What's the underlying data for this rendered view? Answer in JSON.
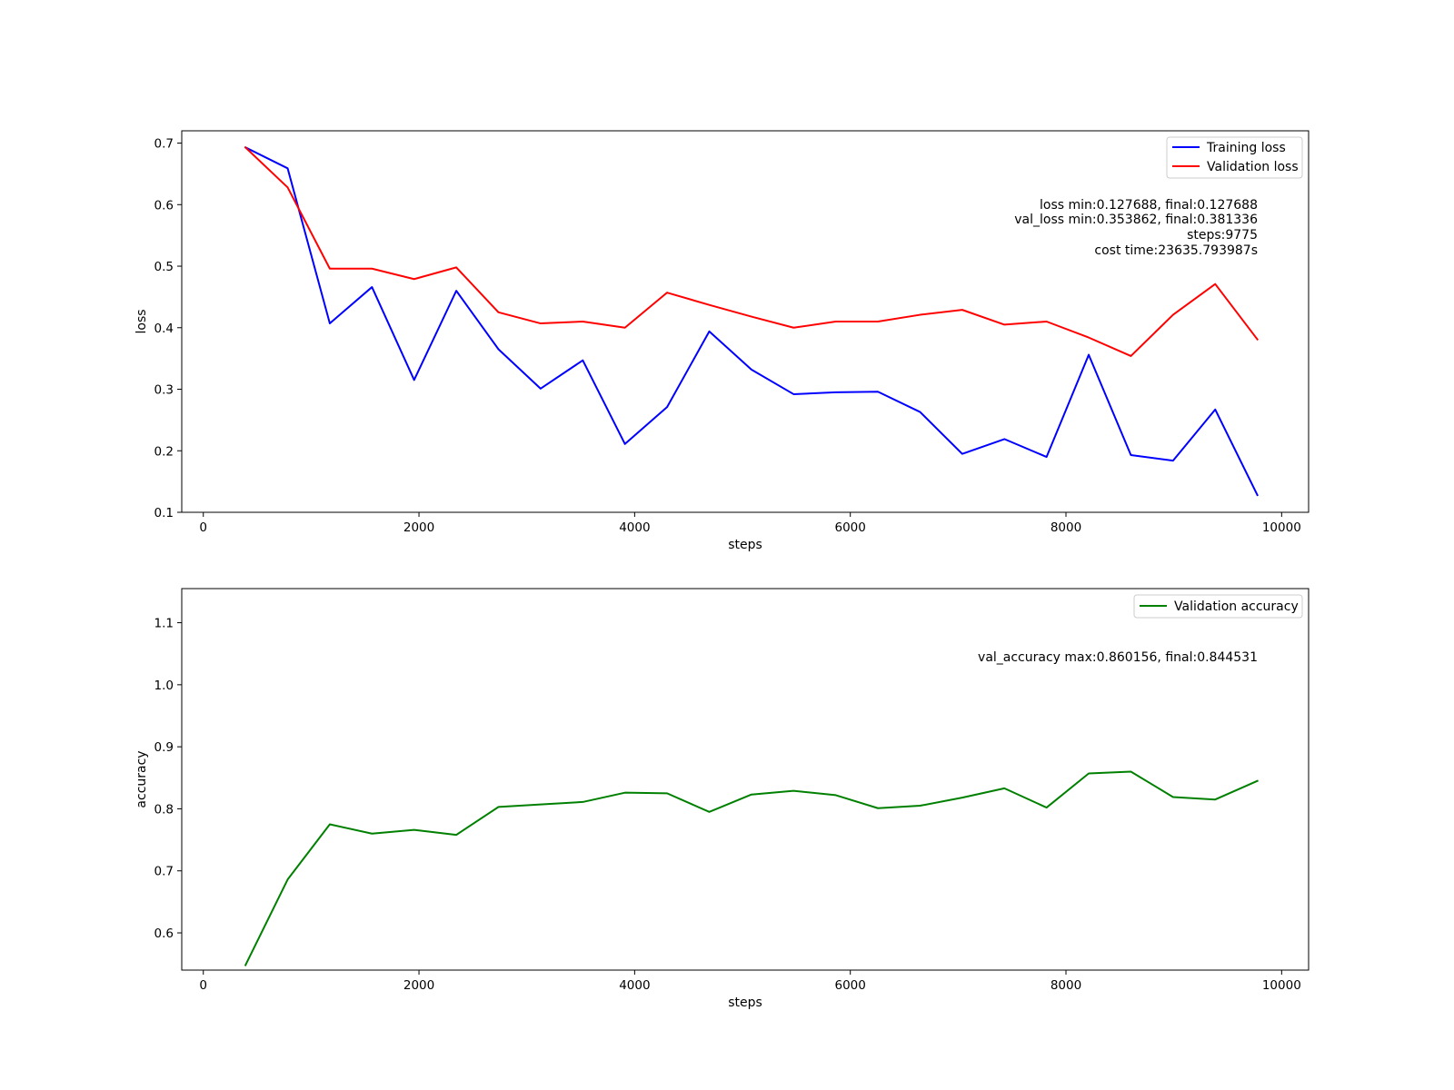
{
  "colors": {
    "training_loss": "#0000ff",
    "validation_loss": "#ff0000",
    "validation_accuracy": "#008000",
    "annotation": "#ffa500"
  },
  "chart_data": [
    {
      "type": "line",
      "xlabel": "steps",
      "ylabel": "loss",
      "xlim": [
        -200,
        10250
      ],
      "ylim": [
        0.1,
        0.72
      ],
      "xticks": [
        0,
        2000,
        4000,
        6000,
        8000,
        10000
      ],
      "yticks": [
        0.1,
        0.2,
        0.3,
        0.4,
        0.5,
        0.6,
        0.7
      ],
      "legend_position": "top-right",
      "x": [
        391,
        782,
        1173,
        1564,
        1955,
        2346,
        2737,
        3128,
        3519,
        3910,
        4301,
        4692,
        5083,
        5474,
        5865,
        6256,
        6647,
        7038,
        7429,
        7820,
        8211,
        8602,
        8993,
        9384,
        9775
      ],
      "series": [
        {
          "name": "Training loss",
          "color": "#0000ff",
          "values": [
            0.693,
            0.659,
            0.407,
            0.466,
            0.315,
            0.46,
            0.365,
            0.301,
            0.347,
            0.211,
            0.271,
            0.394,
            0.332,
            0.292,
            0.295,
            0.296,
            0.263,
            0.195,
            0.219,
            0.19,
            0.356,
            0.193,
            0.184,
            0.267,
            0.128
          ]
        },
        {
          "name": "Validation loss",
          "color": "#ff0000",
          "values": [
            0.693,
            0.628,
            0.496,
            0.496,
            0.479,
            0.498,
            0.425,
            0.407,
            0.41,
            0.4,
            0.457,
            0.437,
            0.418,
            0.4,
            0.41,
            0.41,
            0.421,
            0.429,
            0.405,
            0.41,
            0.384,
            0.354,
            0.421,
            0.471,
            0.381
          ]
        }
      ],
      "annotations": [
        "loss min:0.127688, final:0.127688",
        "val_loss min:0.353862, final:0.381336",
        "steps:9775",
        "cost time:23635.793987s"
      ]
    },
    {
      "type": "line",
      "xlabel": "steps",
      "ylabel": "accuracy",
      "xlim": [
        -200,
        10250
      ],
      "ylim": [
        0.54,
        1.155
      ],
      "xticks": [
        0,
        2000,
        4000,
        6000,
        8000,
        10000
      ],
      "yticks": [
        0.6,
        0.7,
        0.8,
        0.9,
        1.0,
        1.1
      ],
      "legend_position": "top-right",
      "x": [
        391,
        782,
        1173,
        1564,
        1955,
        2346,
        2737,
        3128,
        3519,
        3910,
        4301,
        4692,
        5083,
        5474,
        5865,
        6256,
        6647,
        7038,
        7429,
        7820,
        8211,
        8602,
        8993,
        9384,
        9775
      ],
      "series": [
        {
          "name": "Validation accuracy",
          "color": "#008000",
          "values": [
            0.548,
            0.686,
            0.775,
            0.76,
            0.766,
            0.758,
            0.803,
            0.807,
            0.811,
            0.826,
            0.825,
            0.795,
            0.823,
            0.829,
            0.822,
            0.801,
            0.805,
            0.818,
            0.833,
            0.802,
            0.857,
            0.86,
            0.819,
            0.815,
            0.845
          ]
        }
      ],
      "annotations": [
        "val_accuracy max:0.860156, final:0.844531"
      ]
    }
  ]
}
